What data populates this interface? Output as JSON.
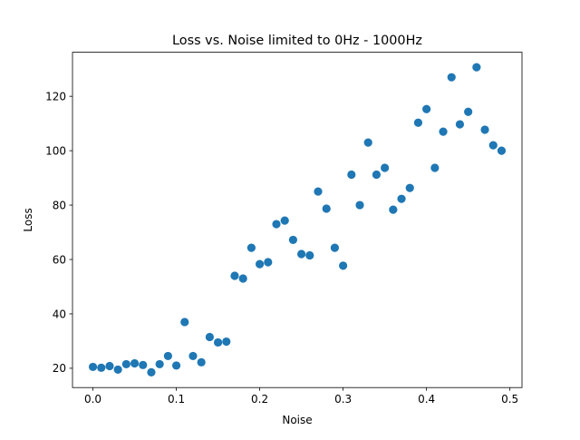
{
  "chart_data": {
    "type": "scatter",
    "title": "Loss vs. Noise limited to 0Hz - 1000Hz",
    "xlabel": "Noise",
    "ylabel": "Loss",
    "xlim": [
      -0.0245,
      0.5145
    ],
    "ylim": [
      12.9,
      136.2
    ],
    "xticks": [
      0.0,
      0.1,
      0.2,
      0.3,
      0.4,
      0.5
    ],
    "xtick_labels": [
      "0.0",
      "0.1",
      "0.2",
      "0.3",
      "0.4",
      "0.5"
    ],
    "yticks": [
      20,
      40,
      60,
      80,
      100,
      120
    ],
    "ytick_labels": [
      "20",
      "40",
      "60",
      "80",
      "100",
      "120"
    ],
    "grid": false,
    "marker_color": "#1f77b4",
    "x": [
      0.0,
      0.01,
      0.02,
      0.03,
      0.04,
      0.05,
      0.06,
      0.07,
      0.08,
      0.09,
      0.1,
      0.11,
      0.12,
      0.13,
      0.14,
      0.15,
      0.16,
      0.17,
      0.18,
      0.19,
      0.2,
      0.21,
      0.22,
      0.23,
      0.24,
      0.25,
      0.26,
      0.27,
      0.28,
      0.29,
      0.3,
      0.31,
      0.32,
      0.33,
      0.34,
      0.35,
      0.36,
      0.37,
      0.38,
      0.39,
      0.4,
      0.41,
      0.42,
      0.43,
      0.44,
      0.45,
      0.46,
      0.47,
      0.48,
      0.49
    ],
    "y": [
      20.5,
      20.2,
      20.8,
      19.5,
      21.5,
      21.8,
      21.2,
      18.5,
      21.5,
      24.5,
      21.0,
      37.0,
      24.5,
      22.2,
      31.5,
      29.5,
      29.8,
      54.0,
      53.0,
      64.3,
      58.3,
      59.0,
      73.0,
      74.3,
      67.2,
      62.0,
      61.5,
      85.0,
      78.7,
      64.3,
      57.7,
      91.2,
      80.0,
      103.0,
      91.2,
      93.7,
      78.3,
      82.3,
      86.3,
      110.3,
      115.3,
      93.7,
      107.0,
      127.0,
      109.7,
      114.3,
      130.7,
      107.7,
      102.0,
      100.0
    ]
  }
}
